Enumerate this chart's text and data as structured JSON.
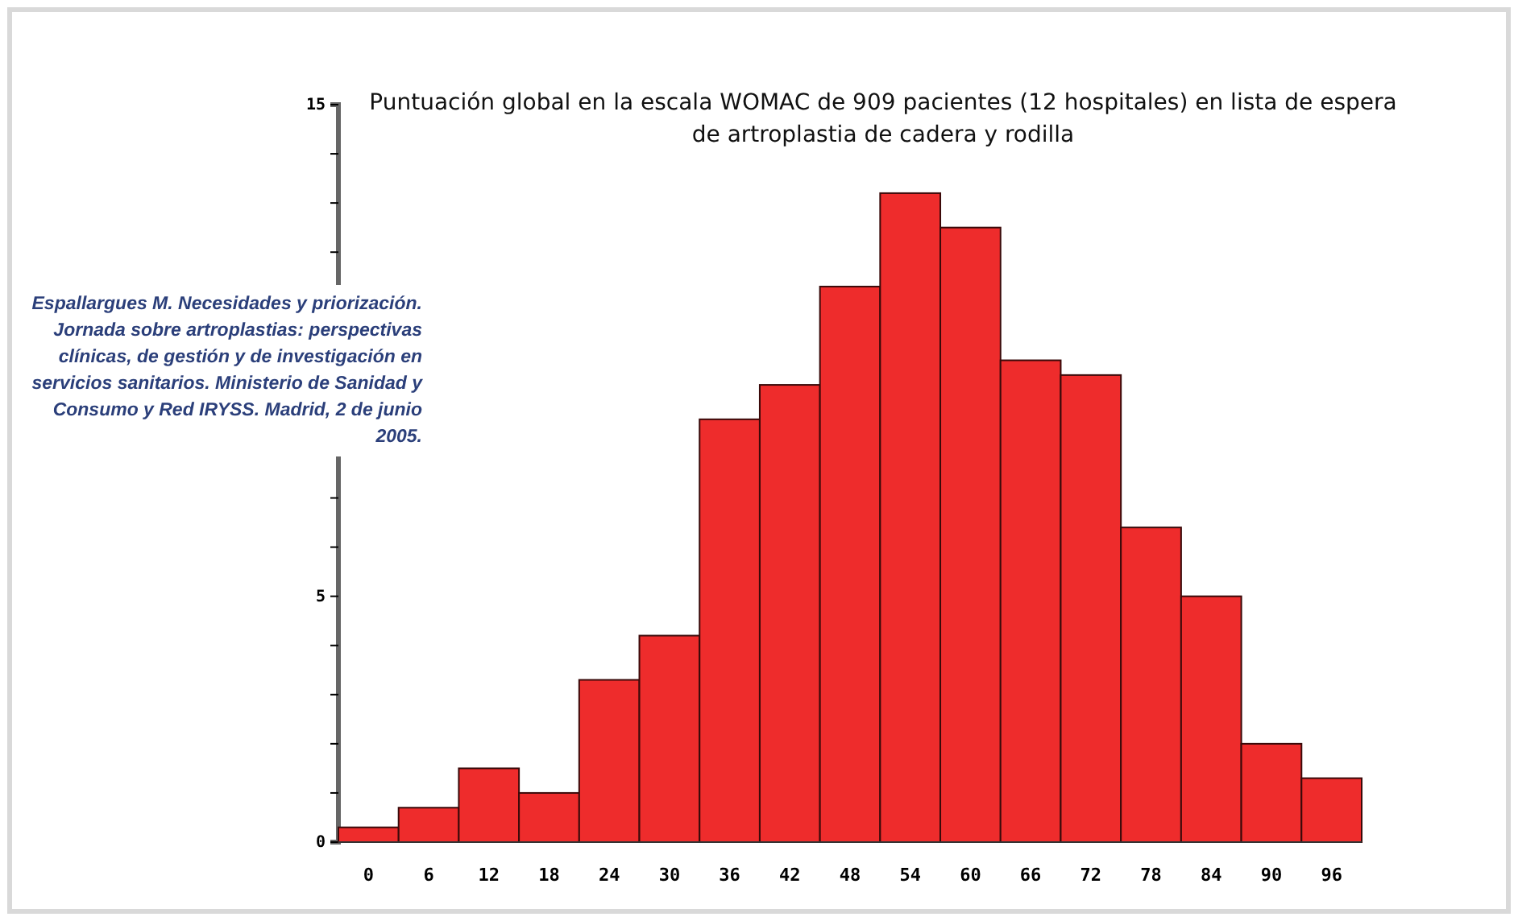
{
  "chart_data": {
    "type": "bar",
    "title": "Puntuación global en la escala WOMAC de 909 pacientes (12 hospitales) en lista de espera de artroplastia de cadera y rodilla",
    "categories": [
      "0",
      "6",
      "12",
      "18",
      "24",
      "30",
      "36",
      "42",
      "48",
      "54",
      "60",
      "66",
      "72",
      "78",
      "84",
      "90",
      "96"
    ],
    "values": [
      0.3,
      0.7,
      1.5,
      1.0,
      3.3,
      4.2,
      8.6,
      9.3,
      11.3,
      13.2,
      12.5,
      9.8,
      9.5,
      6.4,
      5.0,
      2.0,
      1.3
    ],
    "color": "#ee2c2c",
    "ylim": [
      0,
      15
    ],
    "yticks": [
      0,
      {
        "value": 1,
        "label": null
      },
      {
        "value": 2,
        "label": null
      },
      {
        "value": 3,
        "label": null
      },
      {
        "value": 4,
        "label": null
      },
      5,
      {
        "value": 6,
        "label": null
      },
      {
        "value": 7,
        "label": null
      },
      {
        "value": 8,
        "label": null
      },
      {
        "value": 9,
        "label": null
      },
      {
        "value": 10,
        "label": null
      },
      {
        "value": 11,
        "label": null
      },
      {
        "value": 12,
        "label": null
      },
      {
        "value": 13,
        "label": null
      },
      {
        "value": 14,
        "label": null
      },
      15
    ],
    "annotations": [
      "Espallargues M. Necesidades y priorización. Jornada sobre artroplastias: perspectivas clínicas, de gestión y de investigación en servicios sanitarios. Ministerio de Sanidad y Consumo y Red IRYSS. Madrid, 2 de junio 2005."
    ]
  }
}
